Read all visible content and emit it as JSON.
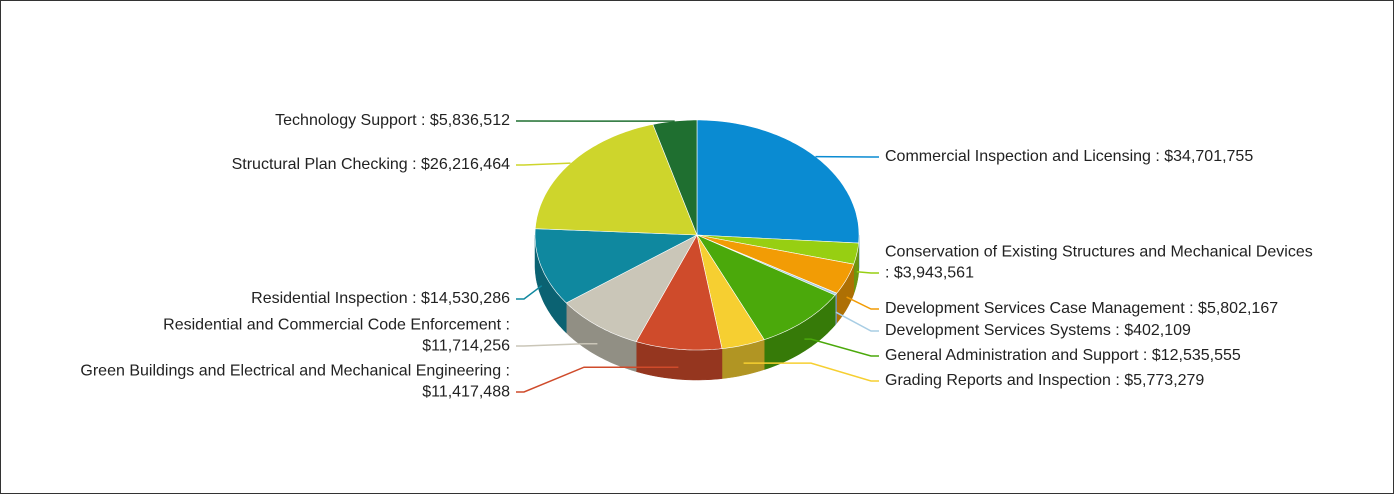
{
  "chart_data": {
    "type": "pie3d",
    "labels": [
      [
        "Commercial Inspection and Licensing : $34,701,755"
      ],
      [
        "Conservation of Existing Structures and Mechanical Devices",
        ": $3,943,561"
      ],
      [
        "Development Services Case Management : $5,802,167"
      ],
      [
        "Development Services Systems : $402,109"
      ],
      [
        "General Administration and Support : $12,535,555"
      ],
      [
        "Grading Reports and Inspection : $5,773,279"
      ],
      [
        "Green Buildings and Electrical and Mechanical Engineering :",
        "$11,417,488"
      ],
      [
        "Residential and Commercial Code Enforcement :",
        "$11,714,256"
      ],
      [
        "Residential Inspection : $14,530,286"
      ],
      [
        "Structural Plan Checking : $26,216,464"
      ],
      [
        "Technology Support : $5,836,512"
      ]
    ],
    "values": [
      34701755,
      3943561,
      5802167,
      402109,
      12535555,
      5773279,
      11417488,
      11714256,
      14530286,
      26216464,
      5836512
    ],
    "colors": [
      "#0a8bd2",
      "#97cf12",
      "#f29c05",
      "#a8cde4",
      "#4ba90b",
      "#f6cf31",
      "#cf4b2b",
      "#cac6b8",
      "#0f889f",
      "#ced52c",
      "#1f6f30"
    ]
  }
}
